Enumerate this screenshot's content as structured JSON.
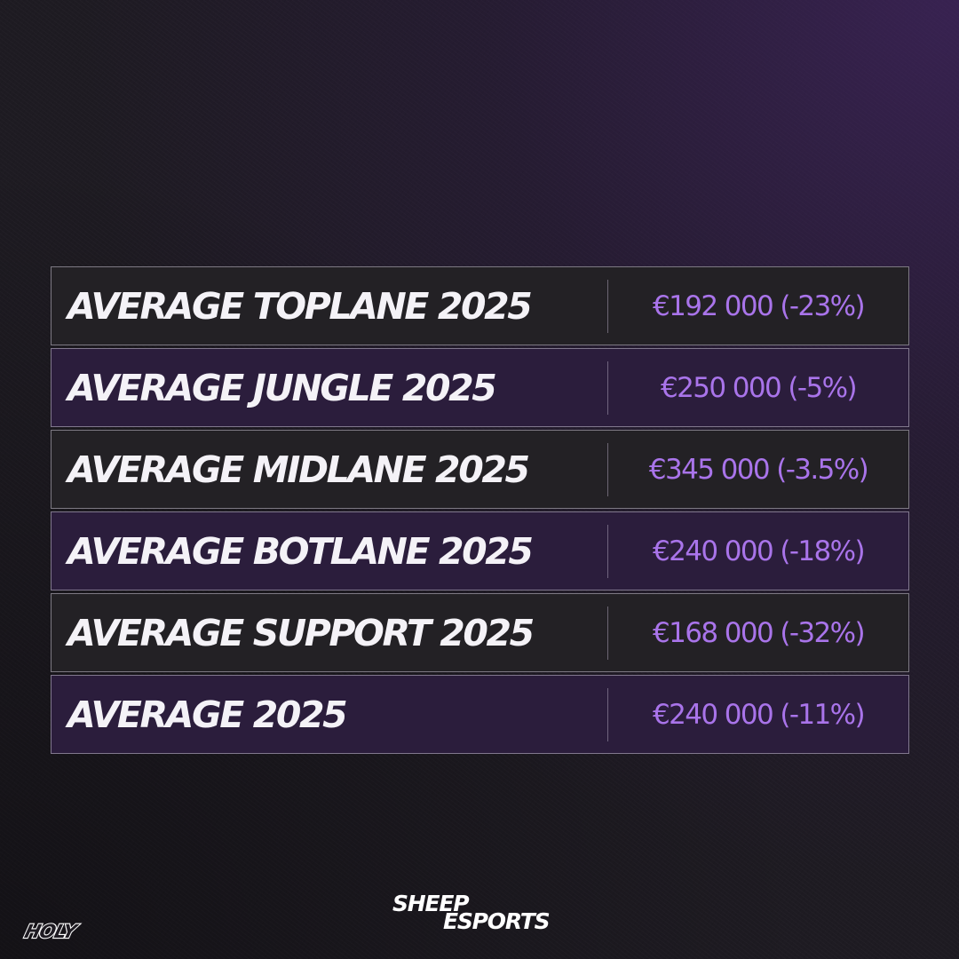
{
  "rows": [
    {
      "label": "AVERAGE TOPLANE 2025",
      "value": "€192 000 (-23%)"
    },
    {
      "label": "AVERAGE JUNGLE 2025",
      "value": "€250 000 (-5%)"
    },
    {
      "label": "AVERAGE MIDLANE 2025",
      "value": "€345 000 (-3.5%)"
    },
    {
      "label": "AVERAGE BOTLANE 2025",
      "value": "€240 000 (-18%)"
    },
    {
      "label": "AVERAGE SUPPORT 2025",
      "value": "€168 000 (-32%)"
    },
    {
      "label": "AVERAGE 2025",
      "value": "€240 000 (-11%)"
    }
  ],
  "brand": {
    "line1": "SHEEP",
    "line2": "ESPORTS"
  },
  "partner_logo": {
    "icon": "holy-logo",
    "text": "HOLY"
  },
  "colors": {
    "label_text": "#f4f2f7",
    "value_text": "#a974ea",
    "row_dark": "#232125",
    "row_purple": "#2b1d3c"
  }
}
